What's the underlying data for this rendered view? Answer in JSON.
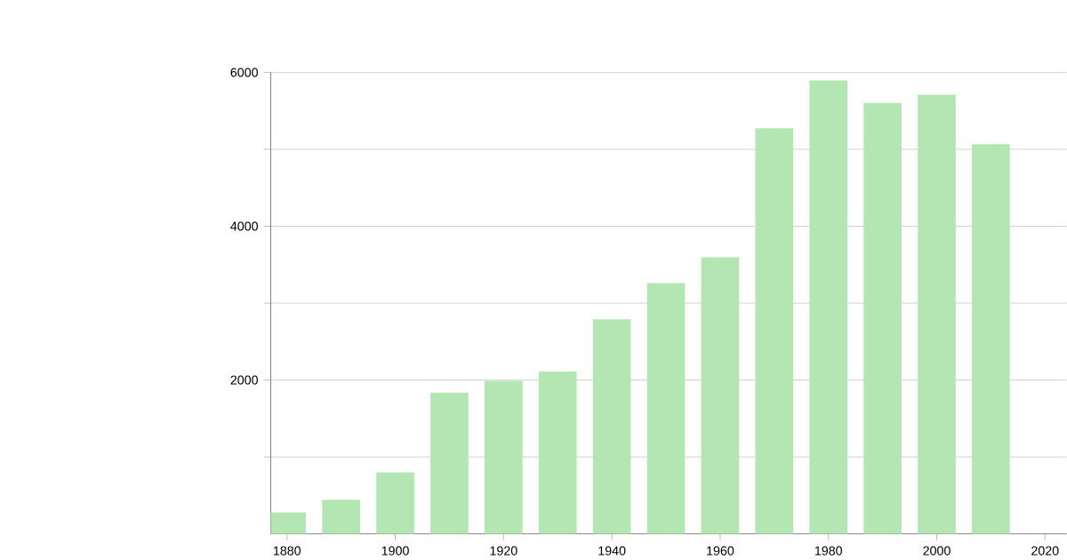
{
  "chart_data": {
    "type": "bar",
    "x": [
      1880,
      1890,
      1900,
      1910,
      1920,
      1930,
      1940,
      1950,
      1960,
      1970,
      1980,
      1990,
      2000,
      2010
    ],
    "values": [
      280,
      445,
      800,
      1835,
      1990,
      2110,
      2790,
      3260,
      3595,
      5275,
      5895,
      5605,
      5710,
      5065
    ],
    "color": "#b3e6b3",
    "xlim": [
      1877,
      2024
    ],
    "xticks": [
      1880,
      1900,
      1920,
      1940,
      1960,
      1980,
      2000,
      2020
    ],
    "ylim": [
      0,
      6000
    ],
    "yticks": [
      {
        "value": 1000,
        "label": null
      },
      2000,
      {
        "value": 3000,
        "label": null
      },
      4000,
      {
        "value": 5000,
        "label": null
      },
      6000
    ],
    "grid": "y"
  }
}
